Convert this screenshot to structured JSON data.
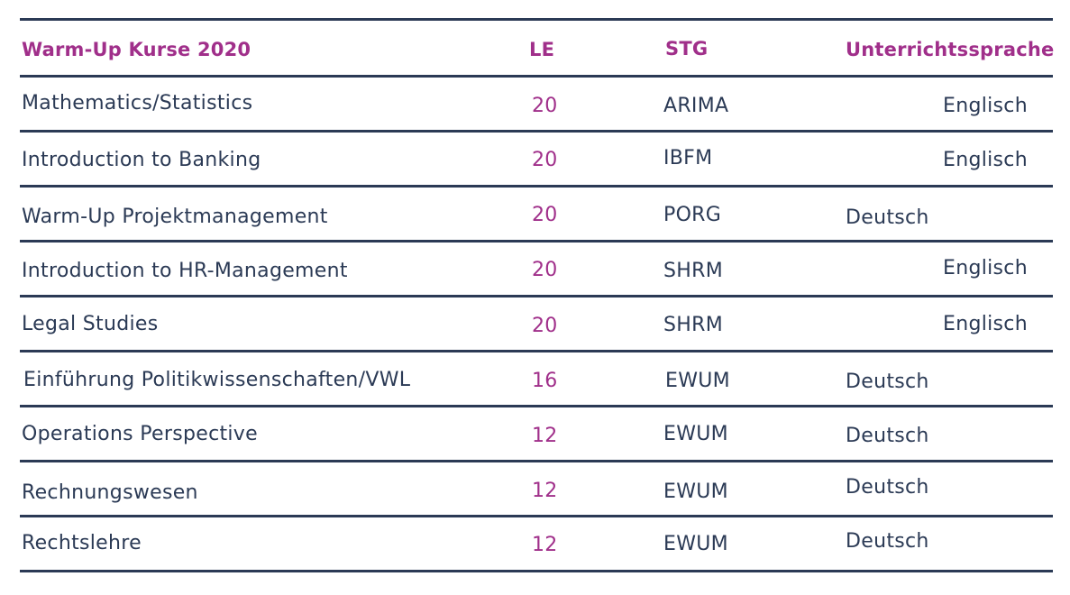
{
  "table": {
    "headers": {
      "course": "Warm-Up Kurse 2020",
      "le": "LE",
      "stg": "STG",
      "language": "Unterrichtssprache"
    },
    "rows": [
      {
        "course": "Mathematics/Statistics",
        "le": "20",
        "stg": "ARIMA",
        "language": "Englisch"
      },
      {
        "course": "Introduction to Banking",
        "le": "20",
        "stg": "IBFM",
        "language": "Englisch"
      },
      {
        "course": "Warm-Up Projektmanagement",
        "le": "20",
        "stg": "PORG",
        "language": "Deutsch"
      },
      {
        "course": "Introduction to HR-Management",
        "le": "20",
        "stg": "SHRM",
        "language": "Englisch"
      },
      {
        "course": "Legal Studies",
        "le": "20",
        "stg": "SHRM",
        "language": "Englisch"
      },
      {
        "course": "Einführung Politikwissenschaften/VWL",
        "le": "16",
        "stg": "EWUM",
        "language": "Deutsch"
      },
      {
        "course": "Operations Perspective",
        "le": "12",
        "stg": "EWUM",
        "language": "Deutsch"
      },
      {
        "course": "Rechnungswesen",
        "le": "12",
        "stg": "EWUM",
        "language": "Deutsch"
      },
      {
        "course": "Rechtslehre",
        "le": "12",
        "stg": "EWUM",
        "language": "Deutsch"
      }
    ]
  },
  "colors": {
    "accent": "#a02f8a",
    "text": "#2b3a55",
    "rule": "#2b3a55"
  }
}
